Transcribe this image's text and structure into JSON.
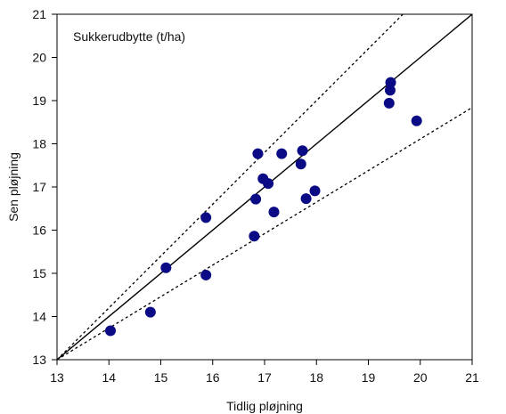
{
  "chart_data": {
    "type": "scatter",
    "title": "",
    "annotation": "Sukkerudbytte (t/ha)",
    "xlabel": "Tidlig pløjning",
    "ylabel": "Sen pløjning",
    "xlim": [
      13,
      21
    ],
    "ylim": [
      13,
      21
    ],
    "x_ticks": [
      "13",
      "14",
      "15",
      "16",
      "17",
      "18",
      "19",
      "20",
      "21"
    ],
    "y_ticks": [
      "13",
      "14",
      "15",
      "16",
      "17",
      "18",
      "19",
      "20",
      "21"
    ],
    "grid": false,
    "points": [
      {
        "x": 14.03,
        "y": 13.67
      },
      {
        "x": 14.8,
        "y": 14.1
      },
      {
        "x": 15.1,
        "y": 15.13
      },
      {
        "x": 15.87,
        "y": 14.96
      },
      {
        "x": 15.87,
        "y": 16.29
      },
      {
        "x": 16.8,
        "y": 15.86
      },
      {
        "x": 16.83,
        "y": 16.72
      },
      {
        "x": 16.87,
        "y": 17.77
      },
      {
        "x": 16.97,
        "y": 17.19
      },
      {
        "x": 17.07,
        "y": 17.08
      },
      {
        "x": 17.18,
        "y": 16.42
      },
      {
        "x": 17.33,
        "y": 17.77
      },
      {
        "x": 17.7,
        "y": 17.53
      },
      {
        "x": 17.73,
        "y": 17.84
      },
      {
        "x": 17.8,
        "y": 16.73
      },
      {
        "x": 17.97,
        "y": 16.91
      },
      {
        "x": 19.4,
        "y": 18.94
      },
      {
        "x": 19.42,
        "y": 19.24
      },
      {
        "x": 19.43,
        "y": 19.42
      },
      {
        "x": 19.93,
        "y": 18.53
      }
    ],
    "reference_lines": [
      {
        "style": "solid",
        "slope": 1.0
      },
      {
        "style": "dotted",
        "slope": 1.2
      },
      {
        "style": "dotted",
        "slope": 0.73
      }
    ],
    "colors": {
      "marker": "#0b0b86",
      "line": "#000000",
      "axis": "#000000"
    }
  }
}
